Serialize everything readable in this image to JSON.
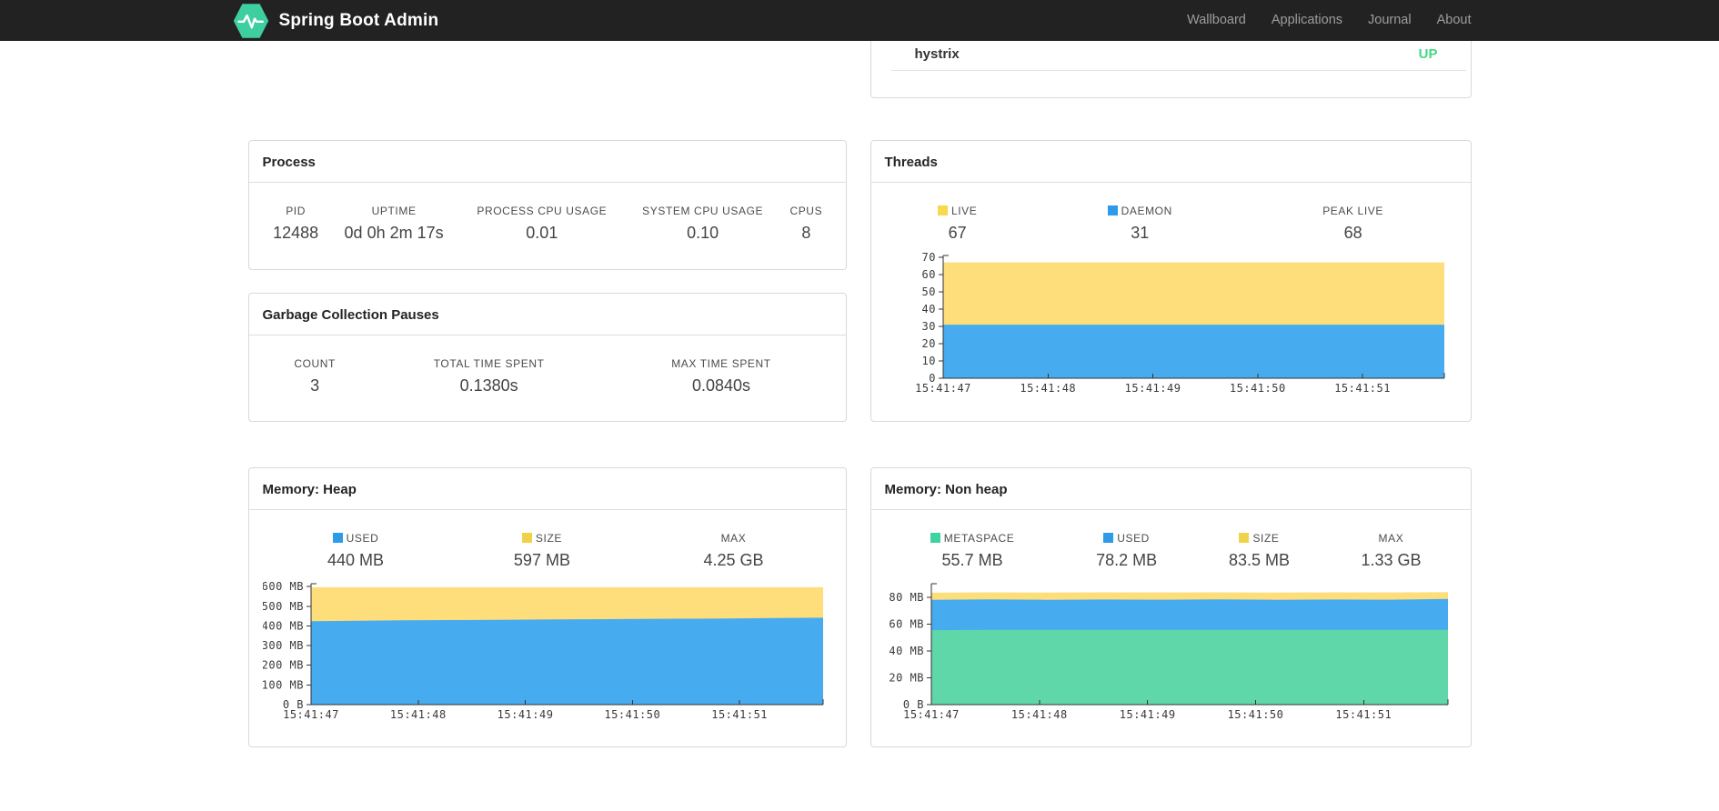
{
  "navbar": {
    "brand": "Spring Boot Admin",
    "bg": "#222222",
    "brand_color": "#ffffff",
    "link_color": "#9d9d9d",
    "logo_color": "#3ecfa0",
    "items": [
      {
        "label": "Wallboard"
      },
      {
        "label": "Applications"
      },
      {
        "label": "Journal"
      },
      {
        "label": "About"
      }
    ]
  },
  "application_panel": {
    "name": "hystrix",
    "status": "UP",
    "status_color": "#42d885"
  },
  "panels": {
    "process": {
      "title": "Process",
      "stats": [
        {
          "label": "PID",
          "value": "12488"
        },
        {
          "label": "UPTIME",
          "value": "0d 0h 2m 17s"
        },
        {
          "label": "PROCESS CPU USAGE",
          "value": "0.01"
        },
        {
          "label": "SYSTEM CPU USAGE",
          "value": "0.10"
        },
        {
          "label": "CPUS",
          "value": "8"
        }
      ]
    },
    "gc": {
      "title": "Garbage Collection Pauses",
      "stats": [
        {
          "label": "COUNT",
          "value": "3"
        },
        {
          "label": "TOTAL TIME SPENT",
          "value": "0.1380s"
        },
        {
          "label": "MAX TIME SPENT",
          "value": "0.0840s"
        }
      ]
    },
    "threads": {
      "title": "Threads",
      "stats": [
        {
          "label": "LIVE",
          "value": "67",
          "swatch": "#f7d94c"
        },
        {
          "label": "DAEMON",
          "value": "31",
          "swatch": "#2d9be8"
        },
        {
          "label": "PEAK LIVE",
          "value": "68"
        }
      ]
    },
    "heap": {
      "title": "Memory: Heap",
      "stats": [
        {
          "label": "USED",
          "value": "440 MB",
          "swatch": "#2d9be8"
        },
        {
          "label": "SIZE",
          "value": "597 MB",
          "swatch": "#f0d24a"
        },
        {
          "label": "MAX",
          "value": "4.25 GB"
        }
      ]
    },
    "nonheap": {
      "title": "Memory: Non heap",
      "stats": [
        {
          "label": "METASPACE",
          "value": "55.7 MB",
          "swatch": "#3ed3a0"
        },
        {
          "label": "USED",
          "value": "78.2 MB",
          "swatch": "#2d9be8"
        },
        {
          "label": "SIZE",
          "value": "83.5 MB",
          "swatch": "#f0d24a"
        },
        {
          "label": "MAX",
          "value": "1.33 GB"
        }
      ]
    }
  },
  "chart_data": [
    {
      "type": "area",
      "title": "Threads",
      "x": [
        "15:41:47",
        "15:41:48",
        "15:41:49",
        "15:41:50",
        "15:41:51"
      ],
      "x_extent": 4.78,
      "ylim": [
        0,
        71
      ],
      "yticks": [
        {
          "v": 0,
          "label": "0"
        },
        {
          "v": 10,
          "label": "10"
        },
        {
          "v": 20,
          "label": "20"
        },
        {
          "v": 30,
          "label": "30"
        },
        {
          "v": 40,
          "label": "40"
        },
        {
          "v": 50,
          "label": "50"
        },
        {
          "v": 60,
          "label": "60"
        },
        {
          "v": 70,
          "label": "70"
        }
      ],
      "series": [
        {
          "name": "LIVE",
          "color": "#fdde7b",
          "values": [
            67,
            67
          ]
        },
        {
          "name": "DAEMON",
          "color": "#47abef",
          "values": [
            31,
            31
          ]
        }
      ]
    },
    {
      "type": "area",
      "title": "Memory: Heap",
      "x": [
        "15:41:47",
        "15:41:48",
        "15:41:49",
        "15:41:50",
        "15:41:51"
      ],
      "x_extent": 4.78,
      "ylim": [
        0,
        615
      ],
      "yticks": [
        {
          "v": 0,
          "label": "0 B"
        },
        {
          "v": 100,
          "label": "100 MB"
        },
        {
          "v": 200,
          "label": "200 MB"
        },
        {
          "v": 300,
          "label": "300 MB"
        },
        {
          "v": 400,
          "label": "400 MB"
        },
        {
          "v": 500,
          "label": "500 MB"
        },
        {
          "v": 600,
          "label": "600 MB"
        }
      ],
      "series": [
        {
          "name": "SIZE",
          "color": "#fdde7b",
          "values": [
            597,
            597
          ]
        },
        {
          "name": "USED",
          "color": "#47abef",
          "values": [
            424,
            427,
            429,
            430,
            431,
            433,
            434,
            436,
            437,
            438,
            440,
            442
          ]
        }
      ]
    },
    {
      "type": "area",
      "title": "Memory: Non heap",
      "x": [
        "15:41:47",
        "15:41:48",
        "15:41:49",
        "15:41:50",
        "15:41:51"
      ],
      "x_extent": 4.78,
      "ylim": [
        0,
        90
      ],
      "yticks": [
        {
          "v": 0,
          "label": "0 B"
        },
        {
          "v": 20,
          "label": "20 MB"
        },
        {
          "v": 40,
          "label": "40 MB"
        },
        {
          "v": 60,
          "label": "60 MB"
        },
        {
          "v": 80,
          "label": "80 MB"
        }
      ],
      "series": [
        {
          "name": "SIZE",
          "color": "#fdde7b",
          "values": [
            83.3,
            83.6,
            83.4,
            83.6,
            83.5,
            83.6,
            83.4,
            83.6,
            83.5,
            83.7
          ]
        },
        {
          "name": "USED",
          "color": "#47abef",
          "values": [
            78.0,
            78.3,
            78.0,
            78.2,
            78.1,
            78.3,
            78.0,
            78.2,
            78.1,
            78.6
          ]
        },
        {
          "name": "METASPACE",
          "color": "#5fd7a9",
          "values": [
            55.4,
            55.7,
            55.7,
            55.7,
            55.7,
            55.7,
            55.7,
            55.7,
            55.7,
            55.7
          ]
        }
      ]
    }
  ]
}
